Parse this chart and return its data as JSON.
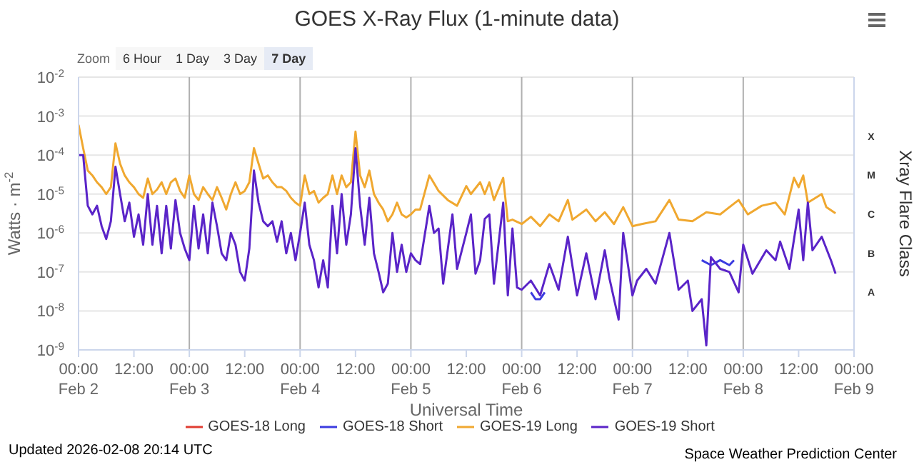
{
  "chart_data": {
    "type": "line",
    "title": "GOES X-Ray Flux (1-minute data)",
    "xlabel": "Universal Time",
    "ylabel": "Watts · m$^{-2}$",
    "y2label": "Xray Flare Class",
    "annotations": [
      "Zoom",
      "6 Hour",
      "1 Day",
      "3 Day",
      "7 Day",
      "A",
      "B",
      "C",
      "M",
      "X",
      "Updated 2026-02-08 20:14 UTC",
      "Space Weather Prediction Center"
    ],
    "log": "y",
    "grid": "y",
    "legend": "bottom",
    "xlim": [
      "2026-02-02T00:00",
      "2026-02-09T00:00"
    ],
    "xticks": [
      {
        "value": "2026-02-02T00:00",
        "label": "00:00\nFeb 2"
      },
      {
        "value": "2026-02-02T12:00",
        "label": "12:00"
      },
      {
        "value": "2026-02-03T00:00",
        "label": "00:00\nFeb 3"
      },
      {
        "value": "2026-02-03T12:00",
        "label": "12:00"
      },
      {
        "value": "2026-02-04T00:00",
        "label": "00:00\nFeb 4"
      },
      {
        "value": "2026-02-04T12:00",
        "label": "12:00"
      },
      {
        "value": "2026-02-05T00:00",
        "label": "00:00\nFeb 5"
      },
      {
        "value": "2026-02-05T12:00",
        "label": "12:00"
      },
      {
        "value": "2026-02-06T00:00",
        "label": "00:00\nFeb 6"
      },
      {
        "value": "2026-02-06T12:00",
        "label": "12:00"
      },
      {
        "value": "2026-02-07T00:00",
        "label": "00:00\nFeb 7"
      },
      {
        "value": "2026-02-07T12:00",
        "label": "12:00"
      },
      {
        "value": "2026-02-08T00:00",
        "label": "00:00\nFeb 8"
      },
      {
        "value": "2026-02-08T12:00",
        "label": "12:00"
      },
      {
        "value": "2026-02-09T00:00",
        "label": "00:00\nFeb 9"
      }
    ],
    "ylim": [
      1e-09,
      0.01
    ],
    "yticks": [
      {
        "value": 1e-09,
        "label": "10$^{-9}$"
      },
      {
        "value": 1e-08,
        "label": "10$^{-8}$"
      },
      {
        "value": 1e-07,
        "label": "10$^{-7}$"
      },
      {
        "value": 1e-06,
        "label": "10$^{-6}$"
      },
      {
        "value": 1e-05,
        "label": "10$^{-5}$"
      },
      {
        "value": 0.0001,
        "label": "10$^{-4}$"
      },
      {
        "value": 0.001,
        "label": "10$^{-3}$"
      },
      {
        "value": 0.01,
        "label": "10$^{-2}$"
      }
    ],
    "ref_lines": [
      {
        "axis": "x",
        "value": "2026-02-03T00:00",
        "color": "#b0b0b0"
      },
      {
        "axis": "x",
        "value": "2026-02-04T00:00",
        "color": "#b0b0b0"
      },
      {
        "axis": "x",
        "value": "2026-02-05T00:00",
        "color": "#b0b0b0"
      },
      {
        "axis": "x",
        "value": "2026-02-06T00:00",
        "color": "#b0b0b0"
      },
      {
        "axis": "x",
        "value": "2026-02-07T00:00",
        "color": "#b0b0b0"
      },
      {
        "axis": "x",
        "value": "2026-02-08T00:00",
        "color": "#b0b0b0"
      }
    ],
    "series": [
      {
        "name": "GOES-18 Long",
        "color": "#e03c31"
      },
      {
        "name": "GOES-18 Short",
        "color": "#3b3be0",
        "x": [
          "2026-02-06T02:00",
          "2026-02-06T03:00",
          "2026-02-06T04:00",
          "2026-02-06T05:00",
          "2026-02-06T12:00",
          "2026-02-07T15:00",
          "2026-02-07T17:00",
          "2026-02-07T19:00",
          "2026-02-07T21:00",
          "2026-02-07T22:00"
        ],
        "values": [
          3e-08,
          2e-08,
          2e-08,
          3e-08,
          null,
          2e-07,
          1.5e-07,
          2e-07,
          1.5e-07,
          2e-07
        ]
      },
      {
        "name": "GOES-19 Long",
        "color": "#f0a830",
        "x": [
          "2026-02-02T00:00",
          "2026-02-02T01:00",
          "2026-02-02T02:00",
          "2026-02-02T03:00",
          "2026-02-02T04:00",
          "2026-02-02T05:00",
          "2026-02-02T06:00",
          "2026-02-02T07:00",
          "2026-02-02T08:00",
          "2026-02-02T09:00",
          "2026-02-02T10:00",
          "2026-02-02T11:00",
          "2026-02-02T12:00",
          "2026-02-02T13:00",
          "2026-02-02T14:00",
          "2026-02-02T15:00",
          "2026-02-02T16:00",
          "2026-02-02T17:00",
          "2026-02-02T18:00",
          "2026-02-02T19:00",
          "2026-02-02T20:00",
          "2026-02-02T21:00",
          "2026-02-02T22:00",
          "2026-02-02T23:00",
          "2026-02-03T00:00",
          "2026-02-03T01:00",
          "2026-02-03T02:00",
          "2026-02-03T03:00",
          "2026-02-03T04:00",
          "2026-02-03T05:00",
          "2026-02-03T06:00",
          "2026-02-03T07:00",
          "2026-02-03T08:00",
          "2026-02-03T09:00",
          "2026-02-03T10:00",
          "2026-02-03T11:00",
          "2026-02-03T12:00",
          "2026-02-03T13:00",
          "2026-02-03T14:00",
          "2026-02-03T15:00",
          "2026-02-03T16:00",
          "2026-02-03T17:00",
          "2026-02-03T18:00",
          "2026-02-03T19:00",
          "2026-02-03T20:00",
          "2026-02-03T21:00",
          "2026-02-03T22:00",
          "2026-02-03T23:00",
          "2026-02-04T00:00",
          "2026-02-04T01:00",
          "2026-02-04T02:00",
          "2026-02-04T03:00",
          "2026-02-04T04:00",
          "2026-02-04T05:00",
          "2026-02-04T06:00",
          "2026-02-04T07:00",
          "2026-02-04T08:00",
          "2026-02-04T09:00",
          "2026-02-04T10:00",
          "2026-02-04T11:00",
          "2026-02-04T12:00",
          "2026-02-04T13:00",
          "2026-02-04T14:00",
          "2026-02-04T15:00",
          "2026-02-04T16:00",
          "2026-02-04T17:00",
          "2026-02-04T18:00",
          "2026-02-04T19:00",
          "2026-02-04T20:00",
          "2026-02-04T21:00",
          "2026-02-04T22:00",
          "2026-02-04T23:00",
          "2026-02-05T00:00",
          "2026-02-05T01:00",
          "2026-02-05T02:00",
          "2026-02-05T04:00",
          "2026-02-05T06:00",
          "2026-02-05T08:00",
          "2026-02-05T10:00",
          "2026-02-05T12:00",
          "2026-02-05T13:00",
          "2026-02-05T15:00",
          "2026-02-05T16:00",
          "2026-02-05T17:00",
          "2026-02-05T18:00",
          "2026-02-05T20:00",
          "2026-02-05T21:00",
          "2026-02-05T22:00",
          "2026-02-06T00:00",
          "2026-02-06T02:00",
          "2026-02-06T04:00",
          "2026-02-06T06:00",
          "2026-02-06T08:00",
          "2026-02-06T10:00",
          "2026-02-06T11:00",
          "2026-02-06T14:00",
          "2026-02-06T16:00",
          "2026-02-06T18:00",
          "2026-02-06T20:00",
          "2026-02-06T22:00",
          "2026-02-07T00:00",
          "2026-02-07T02:00",
          "2026-02-07T05:00",
          "2026-02-07T08:00",
          "2026-02-07T10:00",
          "2026-02-07T13:00",
          "2026-02-07T16:00",
          "2026-02-07T19:00",
          "2026-02-07T23:00",
          "2026-02-08T01:00",
          "2026-02-08T04:00",
          "2026-02-08T07:00",
          "2026-02-08T09:00",
          "2026-02-08T11:00",
          "2026-02-08T12:00",
          "2026-02-08T13:00",
          "2026-02-08T14:00",
          "2026-02-08T17:00",
          "2026-02-08T18:00",
          "2026-02-08T20:00"
        ],
        "values": [
          0.0006,
          0.00015,
          4e-05,
          3e-05,
          2e-05,
          1.5e-05,
          1e-05,
          1.5e-05,
          0.0002,
          6e-05,
          3e-05,
          2e-05,
          1.5e-05,
          1e-05,
          8e-06,
          2.5e-05,
          1e-05,
          1.3e-05,
          2e-05,
          1e-05,
          2e-05,
          2.5e-05,
          1.2e-05,
          8e-06,
          3e-05,
          1e-05,
          7e-06,
          1.5e-05,
          1e-05,
          7e-06,
          1.5e-05,
          8e-06,
          4e-06,
          1e-05,
          2e-05,
          1e-05,
          1.2e-05,
          2e-05,
          0.00015,
          6e-05,
          2.5e-05,
          3e-05,
          2e-05,
          1.5e-05,
          1.5e-05,
          1.2e-05,
          8e-06,
          6e-06,
          5e-06,
          3e-05,
          1e-05,
          1.2e-05,
          6e-06,
          8e-06,
          1e-05,
          3e-05,
          1e-05,
          3e-05,
          1.5e-05,
          2e-05,
          0.0004,
          3e-05,
          1.5e-05,
          4e-05,
          1e-05,
          6e-06,
          4e-06,
          2e-06,
          3e-06,
          6e-06,
          3e-06,
          2.5e-06,
          3e-06,
          4e-06,
          4e-06,
          3e-05,
          1.2e-05,
          7e-06,
          5e-06,
          1.6e-05,
          1e-05,
          2e-05,
          1e-05,
          2e-05,
          7e-06,
          2.6e-05,
          2e-06,
          2.2e-06,
          1.7e-06,
          2.6e-06,
          1.5e-06,
          3e-06,
          2e-06,
          7e-06,
          2.2e-06,
          4e-06,
          2e-06,
          3.4e-06,
          1.7e-06,
          4.6e-06,
          1.5e-06,
          1.7e-06,
          2e-06,
          7e-06,
          2.2e-06,
          2e-06,
          3.4e-06,
          3e-06,
          7e-06,
          3e-06,
          5e-06,
          6e-06,
          3e-06,
          2.6e-05,
          1.5e-05,
          3e-05,
          6e-06,
          1e-05,
          4.6e-06,
          3.2e-06
        ]
      },
      {
        "name": "GOES-19 Short",
        "color": "#5a24c8",
        "x": [
          "2026-02-02T00:00",
          "2026-02-02T01:00",
          "2026-02-02T02:00",
          "2026-02-02T03:00",
          "2026-02-02T04:00",
          "2026-02-02T05:00",
          "2026-02-02T06:00",
          "2026-02-02T07:00",
          "2026-02-02T08:00",
          "2026-02-02T09:00",
          "2026-02-02T10:00",
          "2026-02-02T11:00",
          "2026-02-02T12:00",
          "2026-02-02T13:00",
          "2026-02-02T14:00",
          "2026-02-02T15:00",
          "2026-02-02T16:00",
          "2026-02-02T17:00",
          "2026-02-02T18:00",
          "2026-02-02T19:00",
          "2026-02-02T20:00",
          "2026-02-02T21:00",
          "2026-02-02T22:00",
          "2026-02-02T23:00",
          "2026-02-03T00:00",
          "2026-02-03T01:00",
          "2026-02-03T02:00",
          "2026-02-03T03:00",
          "2026-02-03T04:00",
          "2026-02-03T05:00",
          "2026-02-03T06:00",
          "2026-02-03T07:00",
          "2026-02-03T08:00",
          "2026-02-03T09:00",
          "2026-02-03T10:00",
          "2026-02-03T11:00",
          "2026-02-03T12:00",
          "2026-02-03T13:00",
          "2026-02-03T14:00",
          "2026-02-03T15:00",
          "2026-02-03T16:00",
          "2026-02-03T17:00",
          "2026-02-03T18:00",
          "2026-02-03T19:00",
          "2026-02-03T20:00",
          "2026-02-03T21:00",
          "2026-02-03T22:00",
          "2026-02-03T23:00",
          "2026-02-04T00:00",
          "2026-02-04T01:00",
          "2026-02-04T02:00",
          "2026-02-04T03:00",
          "2026-02-04T04:00",
          "2026-02-04T05:00",
          "2026-02-04T06:00",
          "2026-02-04T07:00",
          "2026-02-04T08:00",
          "2026-02-04T09:00",
          "2026-02-04T10:00",
          "2026-02-04T11:00",
          "2026-02-04T12:00",
          "2026-02-04T13:00",
          "2026-02-04T14:00",
          "2026-02-04T15:00",
          "2026-02-04T16:00",
          "2026-02-04T17:00",
          "2026-02-04T18:00",
          "2026-02-04T19:00",
          "2026-02-04T20:00",
          "2026-02-04T21:00",
          "2026-02-04T22:00",
          "2026-02-04T23:00",
          "2026-02-05T00:00",
          "2026-02-05T01:00",
          "2026-02-05T02:00",
          "2026-02-05T04:00",
          "2026-02-05T05:00",
          "2026-02-05T06:00",
          "2026-02-05T07:00",
          "2026-02-05T09:00",
          "2026-02-05T10:00",
          "2026-02-05T12:00",
          "2026-02-05T13:00",
          "2026-02-05T14:00",
          "2026-02-05T15:00",
          "2026-02-05T16:00",
          "2026-02-05T17:00",
          "2026-02-05T18:00",
          "2026-02-05T20:00",
          "2026-02-05T21:00",
          "2026-02-05T22:00",
          "2026-02-05T23:00",
          "2026-02-06T00:00",
          "2026-02-06T02:00",
          "2026-02-06T04:00",
          "2026-02-06T06:00",
          "2026-02-06T08:00",
          "2026-02-06T10:00",
          "2026-02-06T12:00",
          "2026-02-06T14:00",
          "2026-02-06T16:00",
          "2026-02-06T18:00",
          "2026-02-06T19:00",
          "2026-02-06T21:00",
          "2026-02-06T22:00",
          "2026-02-07T00:00",
          "2026-02-07T01:00",
          "2026-02-07T03:00",
          "2026-02-07T05:00",
          "2026-02-07T08:00",
          "2026-02-07T10:00",
          "2026-02-07T12:00",
          "2026-02-07T13:00",
          "2026-02-07T15:00",
          "2026-02-07T16:00",
          "2026-02-07T17:00",
          "2026-02-07T19:00",
          "2026-02-07T21:00",
          "2026-02-07T23:00",
          "2026-02-08T00:00",
          "2026-02-08T02:00",
          "2026-02-08T05:00",
          "2026-02-08T07:00",
          "2026-02-08T08:00",
          "2026-02-08T10:00",
          "2026-02-08T12:00",
          "2026-02-08T13:00",
          "2026-02-08T14:00",
          "2026-02-08T15:00",
          "2026-02-08T17:00",
          "2026-02-08T19:00",
          "2026-02-08T20:00"
        ],
        "values": [
          0.0001,
          0.0001,
          5e-06,
          3e-06,
          5e-06,
          1.5e-06,
          7e-07,
          2e-06,
          5e-05,
          1e-05,
          2e-06,
          6e-06,
          8e-07,
          3e-06,
          5e-07,
          1e-05,
          5e-07,
          5e-06,
          3e-07,
          5e-06,
          4e-07,
          7e-06,
          1e-06,
          4e-07,
          2e-07,
          5e-06,
          4e-07,
          3e-06,
          3e-07,
          6e-06,
          1.5e-06,
          3e-07,
          2e-07,
          1e-06,
          5e-07,
          1e-07,
          6e-08,
          4e-07,
          4e-05,
          6e-06,
          2e-06,
          1.5e-06,
          2e-06,
          6e-07,
          2e-06,
          3e-07,
          1e-06,
          2e-07,
          1e-06,
          6e-06,
          5e-07,
          2e-07,
          4e-08,
          2e-07,
          4e-08,
          5e-06,
          3e-07,
          1e-05,
          5e-07,
          3e-06,
          0.00015,
          5e-06,
          5e-07,
          8e-06,
          3e-07,
          1e-07,
          3e-08,
          5e-08,
          1e-06,
          1e-07,
          5e-07,
          1e-07,
          3e-07,
          2e-07,
          1.6e-07,
          5e-06,
          1e-06,
          1.3e-06,
          5e-08,
          3e-06,
          1.2e-07,
          1e-06,
          3e-06,
          9e-08,
          2e-07,
          2.3e-06,
          3e-06,
          5e-08,
          6e-06,
          2.5e-08,
          1.3e-06,
          4e-08,
          3.5e-08,
          6e-08,
          2.5e-08,
          1.6e-07,
          3.5e-08,
          8e-07,
          2.5e-08,
          3e-07,
          2e-08,
          3.6e-07,
          7e-08,
          6e-09,
          1e-06,
          2.5e-08,
          6e-08,
          1.2e-07,
          5e-08,
          1e-06,
          3.5e-08,
          6e-08,
          1e-08,
          2e-08,
          1.3e-09,
          2.4e-07,
          1.2e-07,
          1e-07,
          3e-08,
          5e-07,
          9e-08,
          3.6e-07,
          2e-07,
          6e-07,
          1.2e-07,
          4e-06,
          2e-07,
          6e-06,
          3.6e-07,
          8e-07,
          2e-07,
          9e-08
        ]
      }
    ]
  }
}
